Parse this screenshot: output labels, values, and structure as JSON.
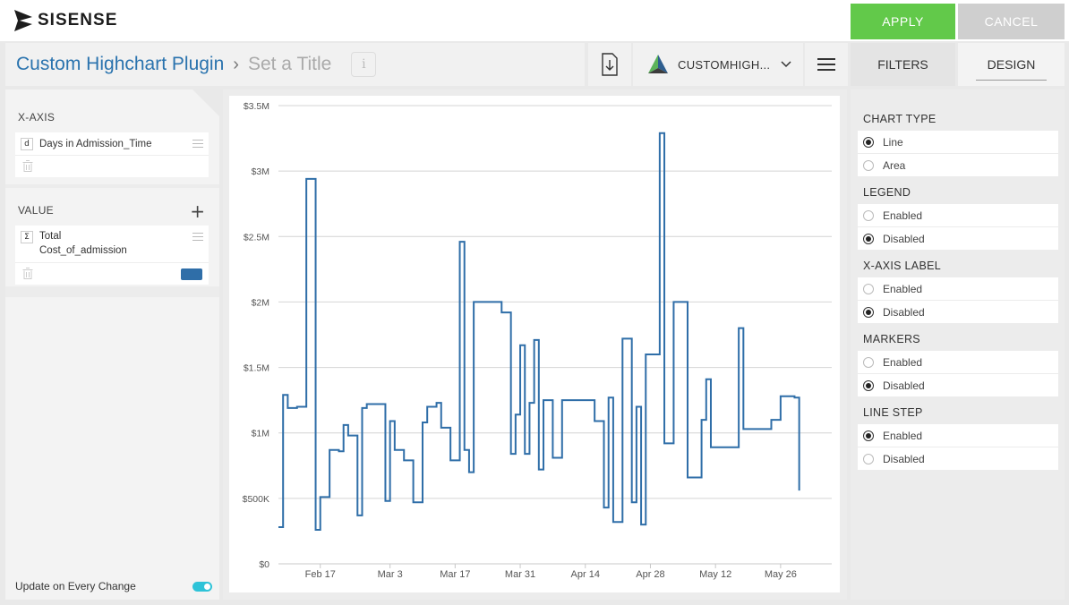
{
  "app": {
    "logo_text": "SISENSE",
    "apply_label": "APPLY",
    "cancel_label": "CANCEL"
  },
  "header": {
    "dashboard_title": "Custom Highchart Plugin",
    "breadcrumb_separator": "›",
    "widget_title": "Set a Title",
    "info_label": "i",
    "plugin_name": "CUSTOMHIGH...",
    "filters_tab": "FILTERS",
    "design_tab": "DESIGN"
  },
  "left_panel": {
    "xaxis": {
      "heading": "X-AXIS",
      "field_type": "d",
      "field_name": "Days in Admission_Time"
    },
    "value": {
      "heading": "VALUE",
      "add_label": "+",
      "field_type": "Σ",
      "field_name_line1": "Total",
      "field_name_line2": "Cost_of_admission",
      "series_color": "#2f6ea8"
    },
    "update_label": "Update on Every Change",
    "update_enabled": true
  },
  "right_panel": {
    "sections": [
      {
        "heading": "CHART TYPE",
        "options": [
          {
            "label": "Line",
            "selected": true
          },
          {
            "label": "Area",
            "selected": false
          }
        ]
      },
      {
        "heading": "LEGEND",
        "options": [
          {
            "label": "Enabled",
            "selected": false
          },
          {
            "label": "Disabled",
            "selected": true
          }
        ]
      },
      {
        "heading": "X-AXIS LABEL",
        "options": [
          {
            "label": "Enabled",
            "selected": false
          },
          {
            "label": "Disabled",
            "selected": true
          }
        ]
      },
      {
        "heading": "MARKERS",
        "options": [
          {
            "label": "Enabled",
            "selected": false
          },
          {
            "label": "Disabled",
            "selected": true
          }
        ]
      },
      {
        "heading": "LINE STEP",
        "options": [
          {
            "label": "Enabled",
            "selected": true
          },
          {
            "label": "Disabled",
            "selected": false
          }
        ]
      }
    ]
  },
  "chart_data": {
    "type": "line",
    "step": true,
    "series_name": "Total Cost_of_admission",
    "color": "#2f6ea8",
    "ylim": [
      0,
      3500000
    ],
    "y_ticks": [
      0,
      500000,
      1000000,
      1500000,
      2000000,
      2500000,
      3000000,
      3500000
    ],
    "y_tick_labels": [
      "$0",
      "$500K",
      "$1M",
      "$1.5M",
      "$2M",
      "$2.5M",
      "$3M",
      "$3.5M"
    ],
    "x_range_days": [
      0,
      119
    ],
    "x_ticks_days": [
      9,
      24,
      38,
      52,
      66,
      80,
      94,
      108
    ],
    "x_tick_labels": [
      "Feb 17",
      "Mar 3",
      "Mar 17",
      "Mar 31",
      "Apr 14",
      "Apr 28",
      "May 12",
      "May 26"
    ],
    "grid": true,
    "legend": "none",
    "points": [
      [
        0,
        280000
      ],
      [
        1,
        1290000
      ],
      [
        2,
        1190000
      ],
      [
        4,
        1200000
      ],
      [
        6,
        2940000
      ],
      [
        8,
        260000
      ],
      [
        9,
        510000
      ],
      [
        11,
        870000
      ],
      [
        13,
        860000
      ],
      [
        14,
        1060000
      ],
      [
        15,
        980000
      ],
      [
        17,
        370000
      ],
      [
        18,
        1190000
      ],
      [
        19,
        1220000
      ],
      [
        23,
        480000
      ],
      [
        24,
        1090000
      ],
      [
        25,
        870000
      ],
      [
        27,
        790000
      ],
      [
        29,
        470000
      ],
      [
        31,
        1080000
      ],
      [
        32,
        1200000
      ],
      [
        34,
        1230000
      ],
      [
        35,
        1040000
      ],
      [
        37,
        790000
      ],
      [
        39,
        2460000
      ],
      [
        40,
        870000
      ],
      [
        41,
        700000
      ],
      [
        42,
        2000000
      ],
      [
        48,
        1920000
      ],
      [
        50,
        840000
      ],
      [
        51,
        1140000
      ],
      [
        52,
        1670000
      ],
      [
        53,
        840000
      ],
      [
        54,
        1230000
      ],
      [
        55,
        1710000
      ],
      [
        56,
        720000
      ],
      [
        57,
        1250000
      ],
      [
        59,
        810000
      ],
      [
        61,
        1250000
      ],
      [
        68,
        1090000
      ],
      [
        70,
        430000
      ],
      [
        71,
        1270000
      ],
      [
        72,
        320000
      ],
      [
        74,
        1720000
      ],
      [
        76,
        470000
      ],
      [
        77,
        1200000
      ],
      [
        78,
        300000
      ],
      [
        79,
        1600000
      ],
      [
        82,
        3290000
      ],
      [
        83,
        920000
      ],
      [
        85,
        2000000
      ],
      [
        88,
        660000
      ],
      [
        91,
        1100000
      ],
      [
        92,
        1410000
      ],
      [
        93,
        890000
      ],
      [
        99,
        1800000
      ],
      [
        100,
        1030000
      ],
      [
        106,
        1100000
      ],
      [
        108,
        1280000
      ],
      [
        111,
        1270000
      ],
      [
        112,
        560000
      ]
    ]
  }
}
